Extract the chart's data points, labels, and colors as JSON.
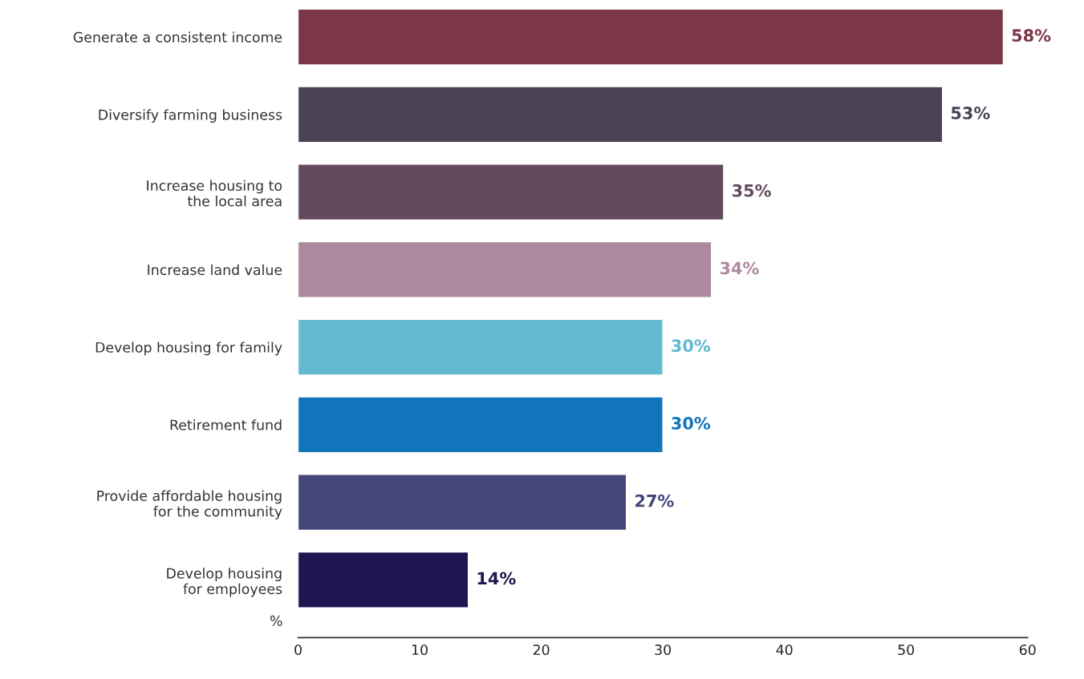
{
  "chart_data": {
    "type": "bar",
    "orientation": "horizontal",
    "xlabel": "%",
    "categories": [
      "Generate a consistent income",
      "Diversify farming business",
      "Increase housing to\nthe local area",
      "Increase land value",
      "Develop housing for family",
      "Retirement fund",
      "Provide affordable housing\nfor the community",
      "Develop housing\nfor employees"
    ],
    "values": [
      58,
      53,
      35,
      34,
      30,
      30,
      27,
      14
    ],
    "colors": [
      "#7b3647",
      "#4a4254",
      "#634b5d",
      "#ad899d",
      "#62b9d1",
      "#1075bb",
      "#43467a",
      "#1e1650"
    ],
    "value_labels": [
      "58%",
      "53%",
      "35%",
      "34%",
      "30%",
      "30%",
      "27%",
      "14%"
    ],
    "xlim": [
      0,
      60
    ],
    "xticks": [
      0,
      10,
      20,
      30,
      40,
      50,
      60
    ],
    "grid": false
  }
}
